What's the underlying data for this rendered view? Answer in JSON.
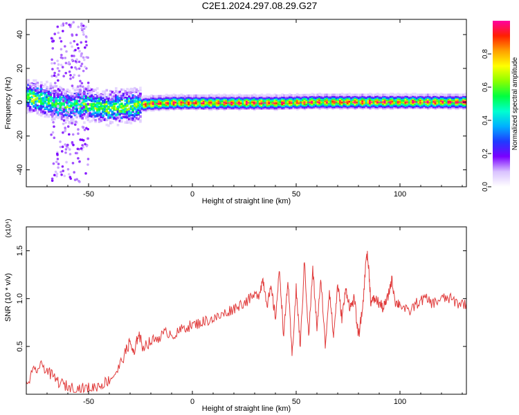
{
  "title": "C2E1.2024.297.08.29.G27",
  "chart_data": [
    {
      "type": "heatmap",
      "xlabel": "Height of straight line (km)",
      "ylabel": "Frequency (Hz)",
      "xlim": [
        -80,
        132
      ],
      "ylim": [
        -50,
        49
      ],
      "x_ticks": [
        -50,
        0,
        50,
        100
      ],
      "y_ticks": [
        -40,
        -20,
        0,
        20,
        40
      ],
      "colorbar": {
        "label": "Normalized spectral amplitude",
        "range": [
          0,
          1
        ],
        "ticks": [
          "0.0",
          "0.2",
          "0.4",
          "0.6",
          "0.8"
        ],
        "colors": [
          "#ffffff",
          "#d9c2ff",
          "#7a00ff",
          "#1f3bff",
          "#00b0ff",
          "#00ffd0",
          "#00ff40",
          "#8cff00",
          "#ffff00",
          "#ffa000",
          "#ff2000",
          "#ff00a0"
        ]
      },
      "ridge": {
        "description_x": [
          -80,
          -70,
          -60,
          -50,
          -40,
          -30,
          -20,
          -10,
          0,
          20,
          40,
          60,
          80,
          100,
          132
        ],
        "center_hz": [
          4,
          1,
          -2,
          -1,
          -3,
          -2,
          -0.5,
          0,
          0,
          0,
          0,
          0.5,
          0.5,
          0.5,
          0.5
        ]
      }
    },
    {
      "type": "line",
      "xlabel": "Height of straight line (km)",
      "ylabel": "SNR (10 * v/v)",
      "y_multiplier": "(x10⁴)",
      "xlim": [
        -80,
        132
      ],
      "ylim": [
        0,
        1.75
      ],
      "x_ticks": [
        -50,
        0,
        50,
        100
      ],
      "y_ticks": [
        "0.5",
        "1.0",
        "1.5"
      ],
      "series": [
        {
          "color": "#e03a3a",
          "x": [
            -80,
            -76,
            -72,
            -68,
            -64,
            -60,
            -56,
            -52,
            -48,
            -44,
            -40,
            -36,
            -32,
            -30,
            -28,
            -26,
            -24,
            -20,
            -16,
            -12,
            -8,
            -4,
            0,
            4,
            8,
            12,
            16,
            20,
            24,
            28,
            32,
            34,
            36,
            38,
            40,
            42,
            44,
            46,
            48,
            50,
            52,
            54,
            56,
            58,
            60,
            62,
            64,
            66,
            68,
            70,
            72,
            74,
            76,
            78,
            80,
            82,
            84,
            85,
            86,
            88,
            90,
            92,
            94,
            96,
            98,
            100,
            104,
            108,
            112,
            116,
            120,
            124,
            128,
            132
          ],
          "y": [
            0.1,
            0.25,
            0.3,
            0.2,
            0.12,
            0.08,
            0.06,
            0.06,
            0.07,
            0.1,
            0.15,
            0.25,
            0.45,
            0.55,
            0.4,
            0.65,
            0.5,
            0.55,
            0.6,
            0.65,
            0.62,
            0.7,
            0.72,
            0.75,
            0.78,
            0.8,
            0.85,
            0.9,
            0.95,
            1.0,
            1.05,
            1.2,
            0.95,
            1.1,
            0.8,
            1.3,
            0.6,
            1.2,
            0.4,
            1.1,
            0.5,
            1.4,
            0.6,
            1.3,
            0.7,
            1.2,
            0.5,
            1.1,
            0.6,
            1.15,
            0.8,
            1.1,
            0.9,
            1.0,
            0.6,
            0.9,
            1.5,
            1.3,
            0.95,
            1.0,
            0.95,
            0.9,
            1.0,
            1.2,
            0.95,
            0.95,
            0.85,
            0.95,
            1.0,
            0.95,
            1.0,
            1.0,
            0.95,
            0.95
          ]
        }
      ]
    }
  ]
}
